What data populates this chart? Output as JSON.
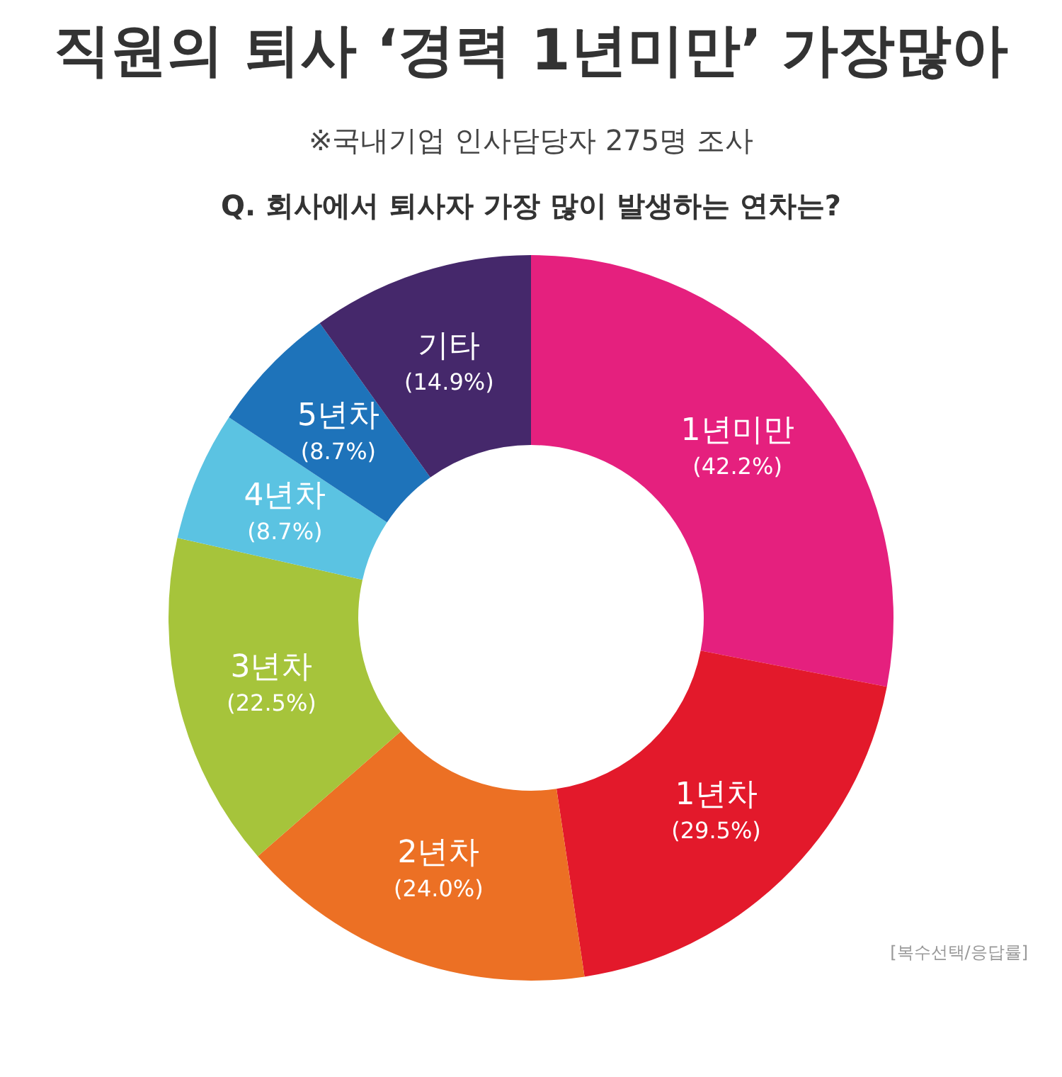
{
  "chart_data": {
    "type": "donut",
    "title": "직원의 퇴사 ‘경력 1년미만’ 가장많아",
    "subtitle": "※국내기업 인사담당자 275명 조사",
    "annotations": [
      "Q. 회사에서 퇴사자 가장 많이 발생하는 연차는?",
      "[복수선택/응답률]"
    ],
    "categories": [
      "1년미만",
      "1년차",
      "2년차",
      "3년차",
      "4년차",
      "5년차",
      "기타"
    ],
    "values": [
      42.2,
      29.5,
      24.0,
      22.5,
      8.7,
      8.7,
      14.9
    ],
    "value_labels": [
      "(42.2%)",
      "(29.5%)",
      "(24.0%)",
      "(22.5%)",
      "(8.7%)",
      "(8.7%)",
      "(14.9%)"
    ],
    "colors": [
      "#e5207e",
      "#e3192b",
      "#ec7024",
      "#a6c43b",
      "#5bc3e2",
      "#1e73ba",
      "#45286b"
    ]
  }
}
